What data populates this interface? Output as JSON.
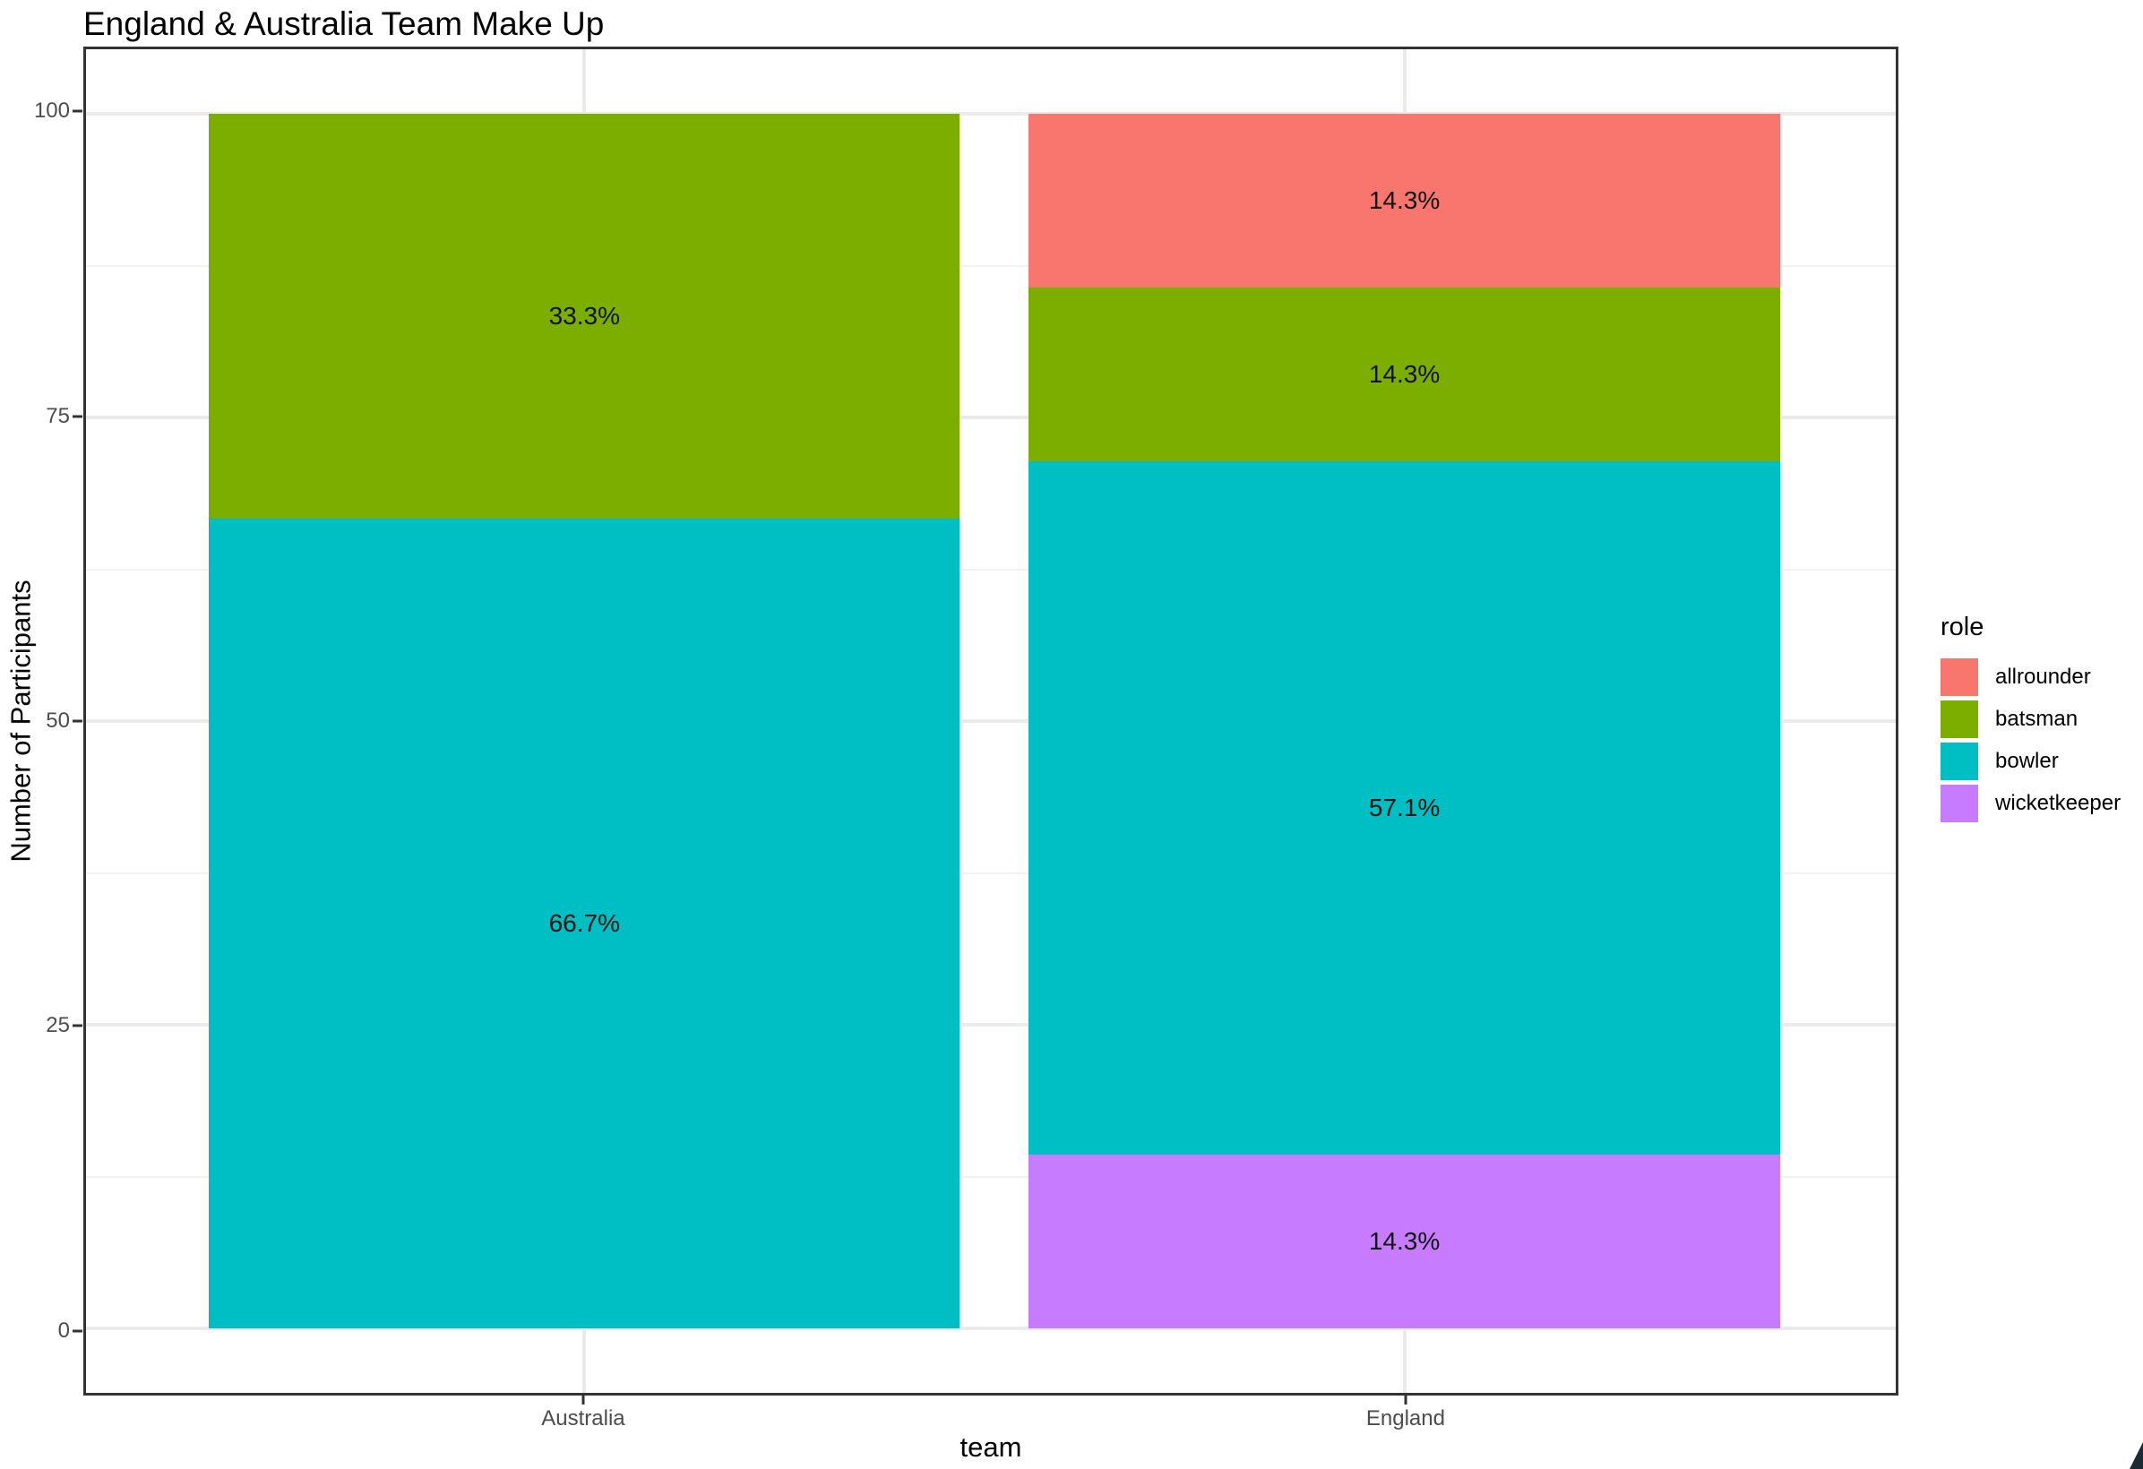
{
  "chart_data": {
    "type": "bar",
    "variant": "stacked-percent",
    "title": "England & Australia Team Make Up",
    "xlabel": "team",
    "ylabel": "Number of Participants",
    "categories": [
      "Australia",
      "England"
    ],
    "y_ticks": [
      "0",
      "25",
      "50",
      "75",
      "100"
    ],
    "ylim": [
      0,
      100
    ],
    "grid": true,
    "legend": {
      "title": "role",
      "position": "right",
      "items": [
        {
          "label": "allrounder",
          "color": "#F8766D"
        },
        {
          "label": "batsman",
          "color": "#7CAE00"
        },
        {
          "label": "bowler",
          "color": "#00BFC4"
        },
        {
          "label": "wicketkeeper",
          "color": "#C77CFF"
        }
      ]
    },
    "series": [
      {
        "name": "allrounder",
        "color": "#F8766D",
        "values": [
          0,
          14.3
        ]
      },
      {
        "name": "batsman",
        "color": "#7CAE00",
        "values": [
          33.3,
          14.3
        ]
      },
      {
        "name": "bowler",
        "color": "#00BFC4",
        "values": [
          66.7,
          57.1
        ]
      },
      {
        "name": "wicketkeeper",
        "color": "#C77CFF",
        "values": [
          0,
          14.3
        ]
      }
    ],
    "bars": [
      {
        "category": "Australia",
        "segments": [
          {
            "role": "batsman",
            "value": 33.3,
            "label": "33.3%"
          },
          {
            "role": "bowler",
            "value": 66.7,
            "label": "66.7%"
          }
        ]
      },
      {
        "category": "England",
        "segments": [
          {
            "role": "allrounder",
            "value": 14.3,
            "label": "14.3%"
          },
          {
            "role": "batsman",
            "value": 14.3,
            "label": "14.3%"
          },
          {
            "role": "bowler",
            "value": 57.1,
            "label": "57.1%"
          },
          {
            "role": "wicketkeeper",
            "value": 14.3,
            "label": "14.3%"
          }
        ]
      }
    ]
  }
}
